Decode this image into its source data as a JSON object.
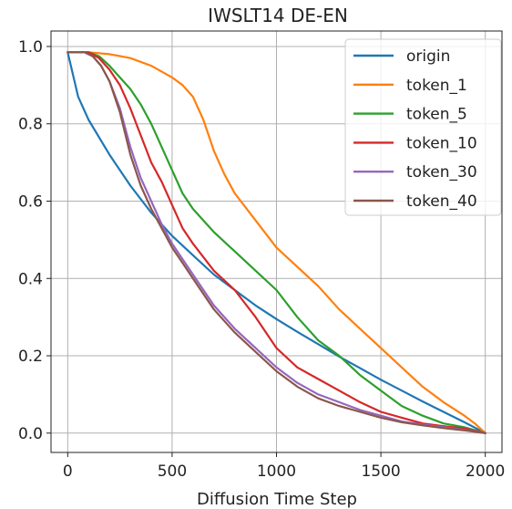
{
  "chart_data": {
    "type": "line",
    "title": "IWSLT14 DE-EN",
    "xlabel": "Diffusion Time Step",
    "ylabel": "",
    "xlim": [
      -80,
      2080
    ],
    "ylim": [
      -0.05,
      1.04
    ],
    "xticks": [
      0,
      500,
      1000,
      1500,
      2000
    ],
    "yticks": [
      0.0,
      0.2,
      0.4,
      0.6,
      0.8,
      1.0
    ],
    "xtick_labels": [
      "0",
      "500",
      "1000",
      "1500",
      "2000"
    ],
    "ytick_labels": [
      "0.0",
      "0.2",
      "0.4",
      "0.6",
      "0.8",
      "1.0"
    ],
    "grid": true,
    "legend_position": "top-right",
    "series": [
      {
        "name": "origin",
        "color": "#1f77b4",
        "x": [
          0,
          50,
          100,
          200,
          300,
          400,
          500,
          600,
          700,
          800,
          900,
          1000,
          1100,
          1200,
          1300,
          1400,
          1500,
          1600,
          1700,
          1800,
          1900,
          2000
        ],
        "y": [
          0.985,
          0.87,
          0.81,
          0.72,
          0.64,
          0.57,
          0.51,
          0.46,
          0.41,
          0.37,
          0.33,
          0.295,
          0.262,
          0.23,
          0.198,
          0.168,
          0.138,
          0.11,
          0.082,
          0.055,
          0.028,
          0.0
        ]
      },
      {
        "name": "token_1",
        "color": "#ff7f0e",
        "x": [
          0,
          100,
          200,
          300,
          400,
          500,
          550,
          600,
          650,
          700,
          750,
          800,
          900,
          1000,
          1100,
          1200,
          1300,
          1400,
          1500,
          1600,
          1700,
          1800,
          1900,
          1950,
          2000
        ],
        "y": [
          0.985,
          0.985,
          0.98,
          0.97,
          0.95,
          0.92,
          0.9,
          0.87,
          0.81,
          0.73,
          0.67,
          0.62,
          0.55,
          0.48,
          0.43,
          0.38,
          0.32,
          0.27,
          0.22,
          0.17,
          0.12,
          0.08,
          0.045,
          0.025,
          0.0
        ]
      },
      {
        "name": "token_5",
        "color": "#2ca02c",
        "x": [
          0,
          100,
          150,
          200,
          250,
          300,
          350,
          400,
          450,
          500,
          550,
          600,
          650,
          700,
          800,
          900,
          1000,
          1100,
          1200,
          1300,
          1400,
          1500,
          1600,
          1700,
          1800,
          1900,
          2000
        ],
        "y": [
          0.985,
          0.985,
          0.975,
          0.95,
          0.92,
          0.89,
          0.85,
          0.8,
          0.74,
          0.68,
          0.62,
          0.58,
          0.55,
          0.52,
          0.47,
          0.42,
          0.37,
          0.3,
          0.24,
          0.2,
          0.15,
          0.11,
          0.07,
          0.045,
          0.025,
          0.015,
          0.0
        ]
      },
      {
        "name": "token_10",
        "color": "#d62728",
        "x": [
          0,
          100,
          150,
          200,
          250,
          300,
          350,
          400,
          450,
          500,
          550,
          600,
          700,
          800,
          900,
          1000,
          1100,
          1200,
          1300,
          1400,
          1500,
          1600,
          1700,
          1800,
          1900,
          2000
        ],
        "y": [
          0.985,
          0.985,
          0.97,
          0.94,
          0.9,
          0.84,
          0.77,
          0.7,
          0.65,
          0.59,
          0.53,
          0.49,
          0.42,
          0.37,
          0.3,
          0.22,
          0.17,
          0.14,
          0.11,
          0.08,
          0.055,
          0.04,
          0.025,
          0.018,
          0.012,
          0.0
        ]
      },
      {
        "name": "token_30",
        "color": "#9467bd",
        "x": [
          0,
          80,
          120,
          160,
          200,
          250,
          300,
          350,
          400,
          450,
          500,
          550,
          600,
          700,
          800,
          900,
          1000,
          1100,
          1200,
          1300,
          1400,
          1500,
          1600,
          1700,
          1800,
          1900,
          2000
        ],
        "y": [
          0.985,
          0.985,
          0.975,
          0.95,
          0.91,
          0.84,
          0.74,
          0.66,
          0.6,
          0.54,
          0.49,
          0.45,
          0.41,
          0.33,
          0.27,
          0.22,
          0.17,
          0.13,
          0.1,
          0.08,
          0.06,
          0.045,
          0.03,
          0.022,
          0.015,
          0.008,
          0.0
        ]
      },
      {
        "name": "token_40",
        "color": "#8c564b",
        "x": [
          0,
          80,
          120,
          160,
          200,
          250,
          300,
          350,
          400,
          450,
          500,
          550,
          600,
          700,
          800,
          900,
          1000,
          1100,
          1200,
          1300,
          1400,
          1500,
          1600,
          1700,
          1800,
          1900,
          2000
        ],
        "y": [
          0.985,
          0.985,
          0.975,
          0.95,
          0.91,
          0.83,
          0.72,
          0.64,
          0.58,
          0.53,
          0.48,
          0.44,
          0.4,
          0.32,
          0.26,
          0.21,
          0.16,
          0.12,
          0.09,
          0.07,
          0.055,
          0.04,
          0.028,
          0.02,
          0.013,
          0.007,
          0.0
        ]
      }
    ]
  }
}
